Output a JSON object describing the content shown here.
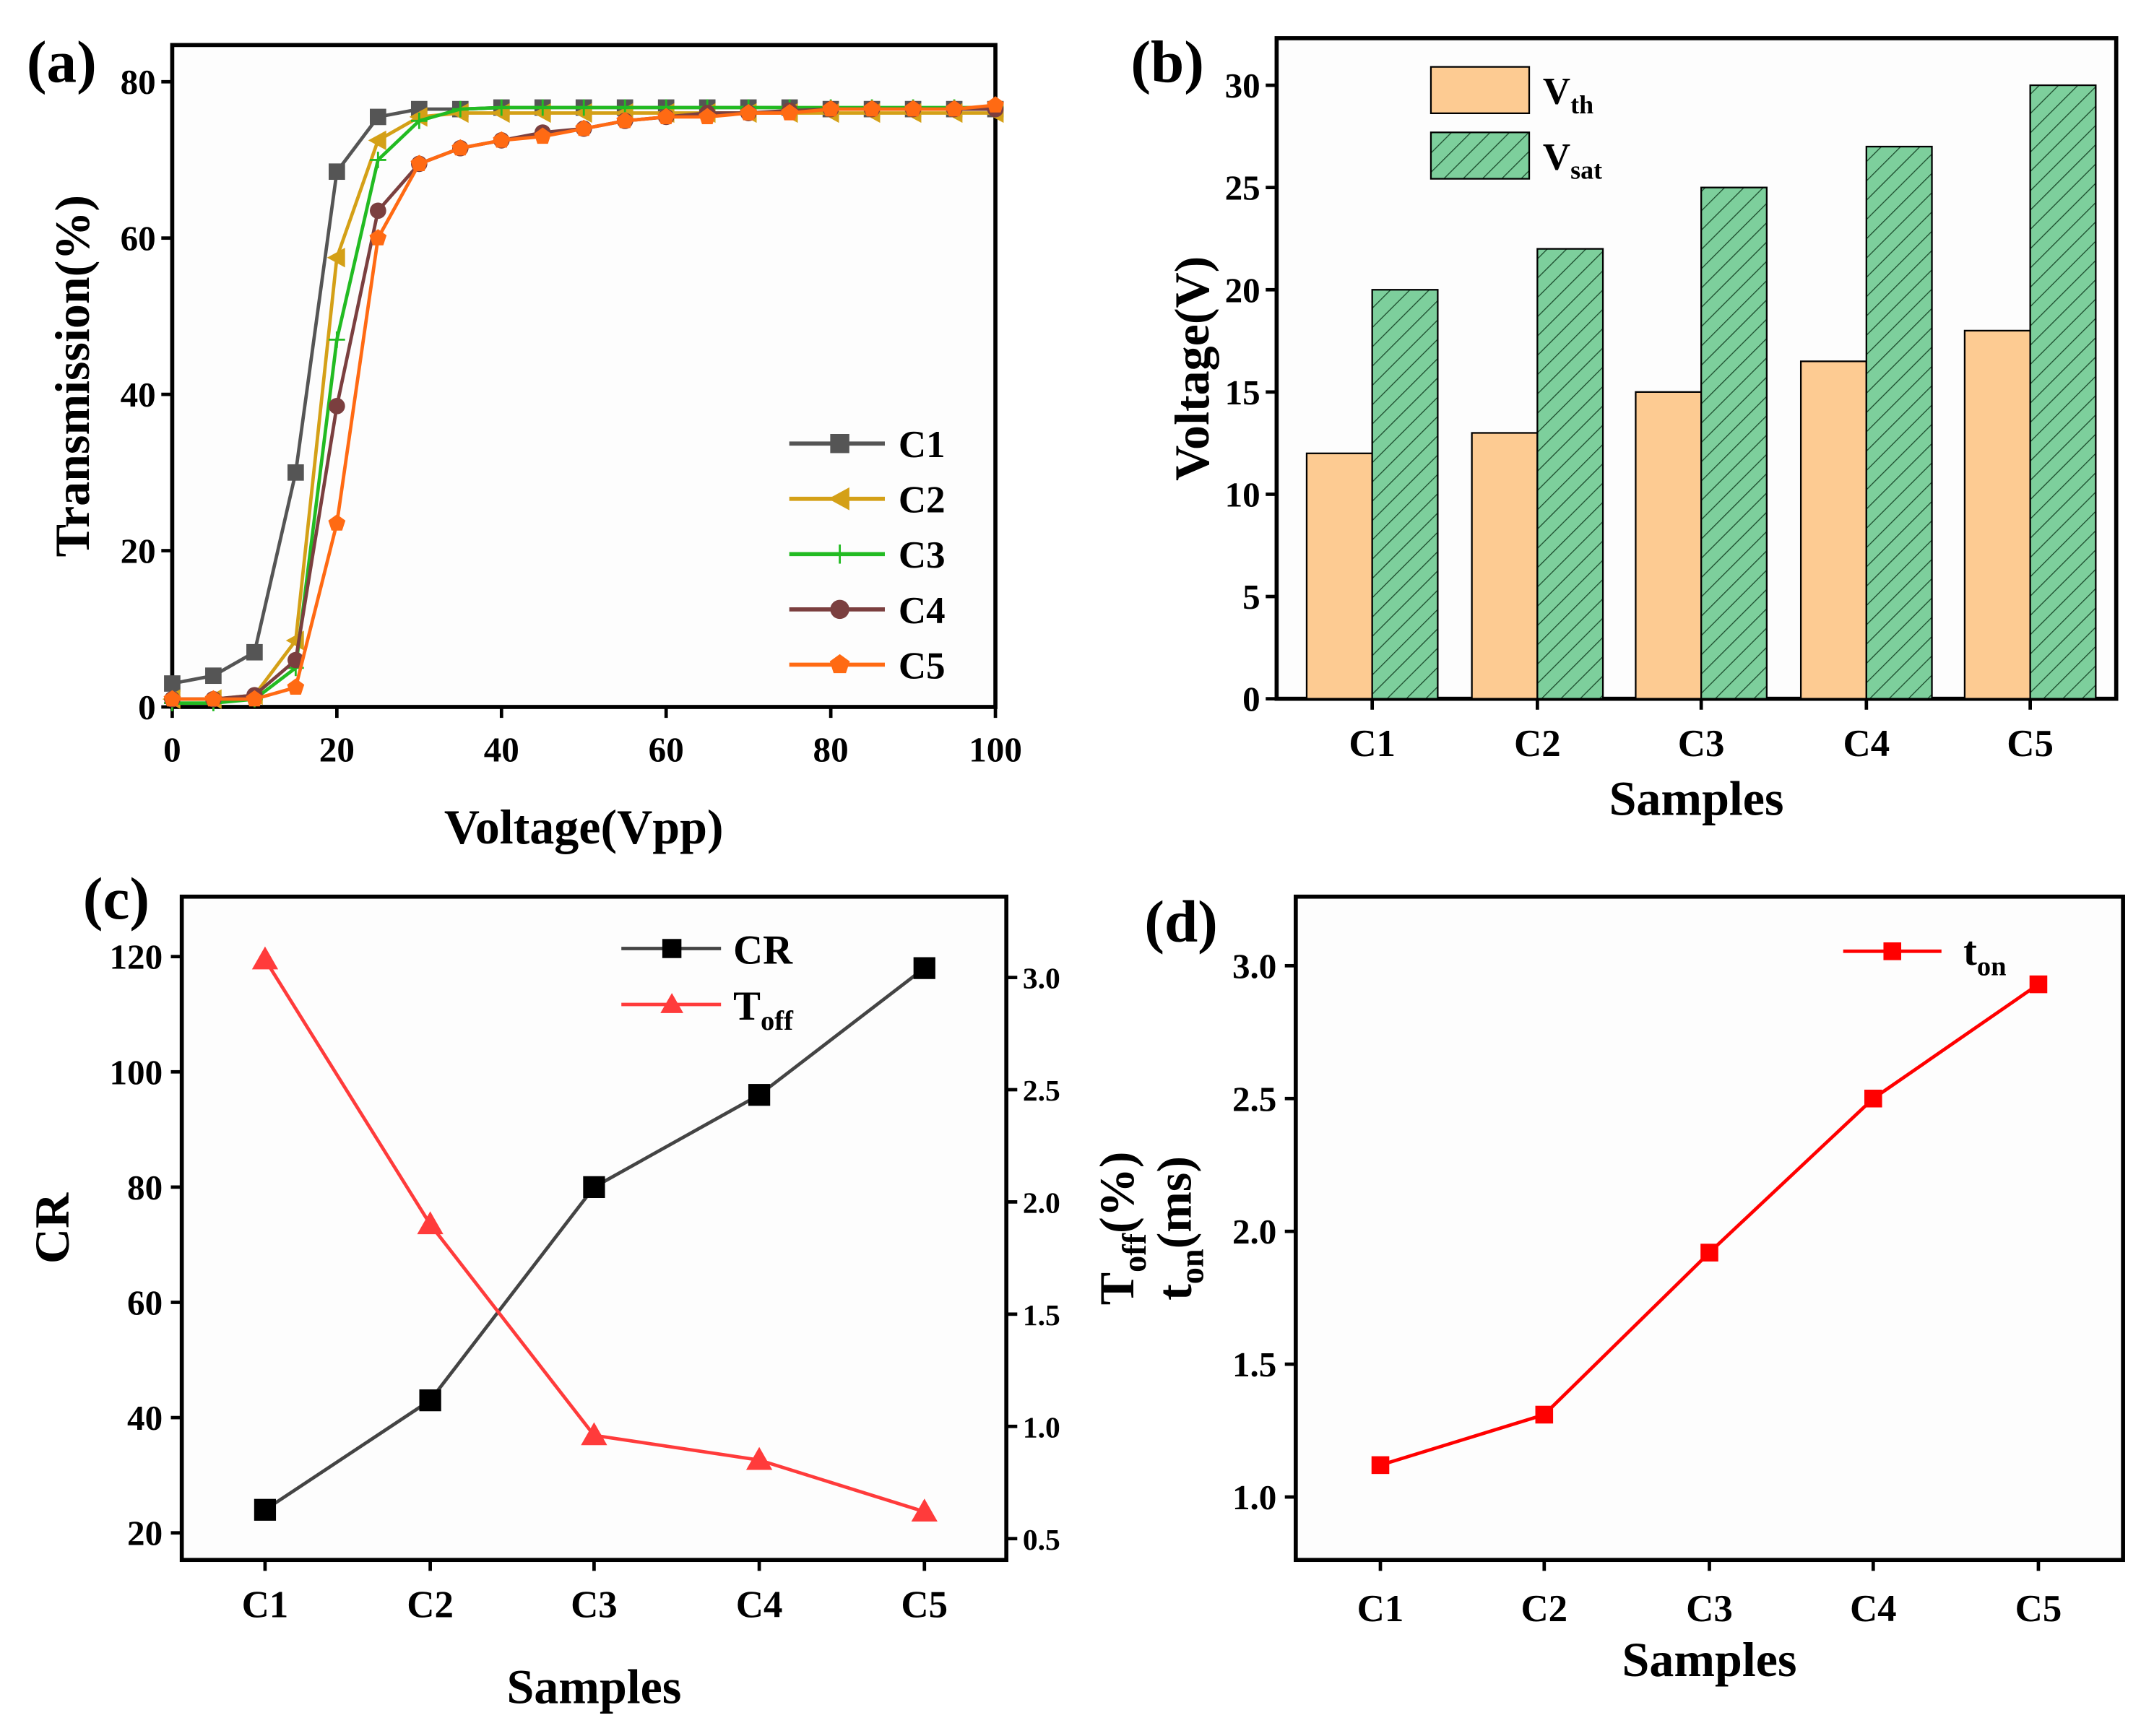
{
  "chart_data": [
    {
      "panel": "(a)",
      "type": "line",
      "xlabel": "Voltage(Vpp)",
      "ylabel": "Transmission(%)",
      "xlim": [
        0,
        100
      ],
      "ylim": [
        0,
        84.7
      ],
      "xticks": [
        0,
        20,
        40,
        60,
        80,
        100
      ],
      "yticks": [
        0,
        20,
        40,
        60,
        80
      ],
      "legend": "bottom-right",
      "x": [
        0,
        5,
        10,
        15,
        20,
        25,
        30,
        35,
        40,
        45,
        50,
        55,
        60,
        65,
        70,
        75,
        80,
        85,
        90,
        95,
        100
      ],
      "series": [
        {
          "name": "C1",
          "color": "#555555",
          "marker": "square",
          "values": [
            3,
            4,
            7,
            30,
            68.5,
            75.5,
            76.5,
            76.5,
            76.7,
            76.7,
            76.7,
            76.7,
            76.7,
            76.7,
            76.7,
            76.7,
            76.5,
            76.5,
            76.5,
            76.5,
            76.5
          ]
        },
        {
          "name": "C2",
          "color": "#D4A017",
          "marker": "triangle-left",
          "values": [
            1,
            1,
            1.5,
            8.5,
            57.5,
            72.5,
            75.5,
            76,
            76,
            76,
            76,
            76,
            76,
            76,
            76,
            76,
            76,
            76,
            76,
            76,
            76
          ]
        },
        {
          "name": "C3",
          "color": "#22BB22",
          "marker": "plus",
          "values": [
            0.5,
            0.5,
            1,
            5,
            47,
            70,
            75,
            76.5,
            76.7,
            76.7,
            76.7,
            76.7,
            76.7,
            76.7,
            76.7,
            76.7,
            76.7,
            76.7,
            76.7,
            76.7,
            76.7
          ]
        },
        {
          "name": "C4",
          "color": "#7B3F3F",
          "marker": "circle",
          "values": [
            1,
            1,
            1.5,
            6,
            38.5,
            63.5,
            69.5,
            71.5,
            72.5,
            73.5,
            74,
            75,
            75.5,
            76,
            76,
            76.3,
            76.5,
            76.5,
            76.5,
            76.5,
            76.5
          ]
        },
        {
          "name": "C5",
          "color": "#FF6A13",
          "marker": "pentagon",
          "values": [
            1,
            1,
            1,
            2.5,
            23.5,
            60,
            69.5,
            71.5,
            72.5,
            73,
            74,
            75,
            75.5,
            75.5,
            76,
            76,
            76.5,
            76.5,
            76.5,
            76.5,
            77
          ]
        }
      ]
    },
    {
      "panel": "(b)",
      "type": "bar",
      "xlabel": "Samples",
      "ylabel": "Voltage(V)",
      "ylim": [
        0,
        32.3
      ],
      "yticks": [
        0,
        5,
        10,
        15,
        20,
        25,
        30
      ],
      "categories": [
        "C1",
        "C2",
        "C3",
        "C4",
        "C5"
      ],
      "legend": "top-left",
      "series": [
        {
          "name": "V",
          "sub": "th",
          "color": "#FDCB92",
          "values": [
            12,
            13,
            15,
            16.5,
            18
          ]
        },
        {
          "name": "V",
          "sub": "sat",
          "color": "#7DCF9C",
          "hatch": true,
          "values": [
            20,
            22,
            25,
            27,
            30
          ]
        }
      ]
    },
    {
      "panel": "(c)",
      "type": "line",
      "xlabel": "Samples",
      "ylabel": "CR",
      "ylabel_right": {
        "main": "T",
        "sub": "off",
        "rest": "(%)"
      },
      "categories": [
        "C1",
        "C2",
        "C3",
        "C4",
        "C5"
      ],
      "ylim": [
        15.3,
        130.4
      ],
      "yticks": [
        20,
        40,
        60,
        80,
        100,
        120
      ],
      "ylim_right": [
        0.405,
        3.36
      ],
      "yticks_right": [
        "0.5",
        "1.0",
        "1.5",
        "2.0",
        "2.5",
        "3.0"
      ],
      "legend": "top-center",
      "series": [
        {
          "name": "CR",
          "sub": "",
          "color": "#000000",
          "line": "#444444",
          "marker": "square",
          "axis": "left",
          "values": [
            24,
            43,
            80,
            96,
            118
          ]
        },
        {
          "name": "T",
          "sub": "off",
          "color": "#FF3B3B",
          "line": "#FF3B3B",
          "marker": "triangle",
          "axis": "right",
          "values": [
            3.08,
            1.9,
            0.96,
            0.85,
            0.62
          ]
        }
      ]
    },
    {
      "panel": "(d)",
      "type": "line",
      "xlabel": "Samples",
      "ylabel": {
        "main": "t",
        "sub": "on",
        "rest": "(ms)"
      },
      "categories": [
        "C1",
        "C2",
        "C3",
        "C4",
        "C5"
      ],
      "ylim": [
        0.763,
        3.26
      ],
      "yticks": [
        "1.0",
        "1.5",
        "2.0",
        "2.5",
        "3.0"
      ],
      "legend": "top-right",
      "series": [
        {
          "name": "t",
          "sub": "on",
          "color": "#FF0000",
          "line": "#FF0000",
          "marker": "square",
          "values": [
            1.12,
            1.31,
            1.92,
            2.5,
            2.93
          ]
        }
      ]
    }
  ]
}
